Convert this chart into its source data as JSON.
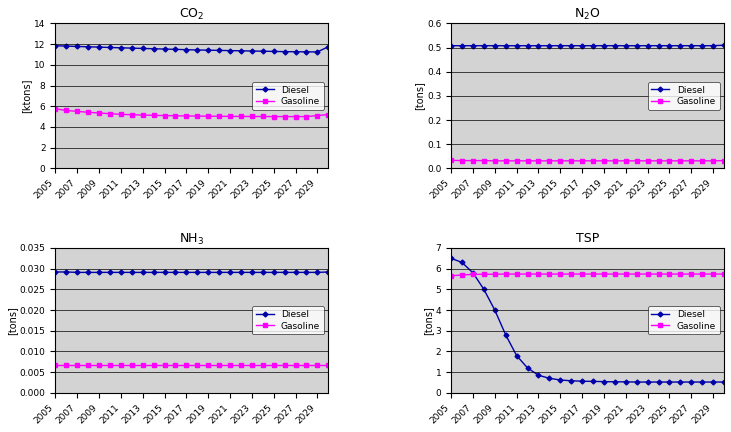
{
  "years": [
    2005,
    2006,
    2007,
    2008,
    2009,
    2010,
    2011,
    2012,
    2013,
    2014,
    2015,
    2016,
    2017,
    2018,
    2019,
    2020,
    2021,
    2022,
    2023,
    2024,
    2025,
    2026,
    2027,
    2028,
    2029,
    2030
  ],
  "co2_diesel": [
    11.85,
    11.82,
    11.78,
    11.75,
    11.72,
    11.68,
    11.65,
    11.62,
    11.59,
    11.56,
    11.53,
    11.5,
    11.47,
    11.44,
    11.42,
    11.4,
    11.38,
    11.36,
    11.34,
    11.32,
    11.3,
    11.28,
    11.27,
    11.26,
    11.25,
    11.75
  ],
  "co2_gasoline": [
    5.75,
    5.6,
    5.5,
    5.42,
    5.35,
    5.28,
    5.22,
    5.18,
    5.15,
    5.12,
    5.1,
    5.08,
    5.06,
    5.05,
    5.04,
    5.03,
    5.02,
    5.02,
    5.01,
    5.01,
    5.0,
    5.0,
    5.0,
    5.0,
    5.1,
    5.2
  ],
  "n2o_diesel": [
    0.508,
    0.508,
    0.508,
    0.508,
    0.508,
    0.508,
    0.508,
    0.508,
    0.508,
    0.508,
    0.508,
    0.508,
    0.508,
    0.508,
    0.508,
    0.508,
    0.508,
    0.508,
    0.508,
    0.508,
    0.508,
    0.508,
    0.508,
    0.508,
    0.508,
    0.51
  ],
  "n2o_gasoline": [
    0.033,
    0.032,
    0.032,
    0.032,
    0.031,
    0.031,
    0.031,
    0.031,
    0.031,
    0.031,
    0.031,
    0.031,
    0.031,
    0.031,
    0.031,
    0.031,
    0.031,
    0.031,
    0.031,
    0.031,
    0.031,
    0.031,
    0.031,
    0.031,
    0.031,
    0.032
  ],
  "nh3_diesel": [
    0.0292,
    0.0292,
    0.0291,
    0.0291,
    0.0291,
    0.0291,
    0.0291,
    0.0291,
    0.0291,
    0.0291,
    0.0291,
    0.0291,
    0.0291,
    0.0291,
    0.0291,
    0.0291,
    0.0291,
    0.0291,
    0.0291,
    0.0291,
    0.0291,
    0.0291,
    0.0291,
    0.0291,
    0.0291,
    0.0292
  ],
  "nh3_gasoline": [
    0.0067,
    0.0067,
    0.0067,
    0.0067,
    0.0067,
    0.0067,
    0.0067,
    0.0067,
    0.0067,
    0.0067,
    0.0067,
    0.0067,
    0.0067,
    0.0067,
    0.0067,
    0.0067,
    0.0067,
    0.0067,
    0.0067,
    0.0067,
    0.0067,
    0.0067,
    0.0067,
    0.0067,
    0.0067,
    0.0067
  ],
  "tsp_diesel": [
    6.5,
    6.3,
    5.8,
    5.0,
    4.0,
    2.8,
    1.8,
    1.2,
    0.85,
    0.7,
    0.62,
    0.58,
    0.56,
    0.55,
    0.54,
    0.53,
    0.53,
    0.52,
    0.52,
    0.52,
    0.52,
    0.52,
    0.52,
    0.52,
    0.52,
    0.52
  ],
  "tsp_gasoline": [
    5.65,
    5.7,
    5.72,
    5.73,
    5.73,
    5.74,
    5.74,
    5.74,
    5.74,
    5.74,
    5.74,
    5.74,
    5.74,
    5.74,
    5.74,
    5.74,
    5.74,
    5.74,
    5.74,
    5.74,
    5.74,
    5.74,
    5.74,
    5.74,
    5.74,
    5.74
  ],
  "diesel_color": "#0000aa",
  "gasoline_color": "#ff00ff",
  "subplot_bg": "#d3d3d3",
  "year_ticks": [
    2005,
    2007,
    2009,
    2011,
    2013,
    2015,
    2017,
    2019,
    2021,
    2023,
    2025,
    2027,
    2029
  ]
}
